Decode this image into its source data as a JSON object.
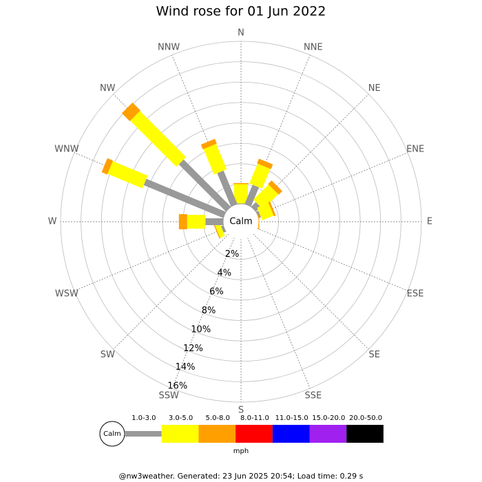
{
  "chart_data": {
    "type": "windrose",
    "title": "Wind rose for 01 Jun 2022",
    "directions": [
      "N",
      "NNE",
      "NE",
      "ENE",
      "E",
      "ESE",
      "SE",
      "SSE",
      "S",
      "SSW",
      "SW",
      "WSW",
      "W",
      "WNW",
      "NW",
      "NNW"
    ],
    "calm_label": "Calm",
    "rlim": [
      0,
      16
    ],
    "rticks": [
      {
        "value": 2,
        "label": "2%"
      },
      {
        "value": 4,
        "label": "4%"
      },
      {
        "value": 6,
        "label": "6%"
      },
      {
        "value": 8,
        "label": "8%"
      },
      {
        "value": 10,
        "label": "10%"
      },
      {
        "value": 12,
        "label": "12%"
      },
      {
        "value": 14,
        "label": "14%"
      },
      {
        "value": 16,
        "label": "16%"
      }
    ],
    "series": [
      {
        "name": "1.0-3.0",
        "color": "#999999",
        "values": [
          0.1,
          2.1,
          0.7,
          0.3,
          0,
          0,
          0,
          0,
          0,
          0,
          0,
          0.3,
          1.8,
          8.5,
          6.6,
          3.6
        ]
      },
      {
        "name": "3.0-5.0",
        "color": "#ffff00",
        "values": [
          1.9,
          2.1,
          2.1,
          1.2,
          0,
          0,
          0,
          0,
          0,
          0,
          0,
          0.5,
          1.8,
          3.7,
          6.4,
          2.7
        ]
      },
      {
        "name": "5.0-8.0",
        "color": "#ffa000",
        "values": [
          0.1,
          0.5,
          0.5,
          0.2,
          0.1,
          0,
          0,
          0,
          0,
          0,
          0,
          0.1,
          0.8,
          0.6,
          1.1,
          0.5
        ]
      },
      {
        "name": "8.0-11.0",
        "color": "#ff0000",
        "values": [
          0,
          0,
          0,
          0,
          0,
          0,
          0,
          0,
          0,
          0,
          0,
          0,
          0,
          0,
          0,
          0
        ]
      },
      {
        "name": "11.0-15.0",
        "color": "#0000ff",
        "values": [
          0,
          0,
          0,
          0,
          0,
          0,
          0,
          0,
          0,
          0,
          0,
          0,
          0,
          0,
          0,
          0
        ]
      },
      {
        "name": "15.0-20.0",
        "color": "#a020f0",
        "values": [
          0,
          0,
          0,
          0,
          0,
          0,
          0,
          0,
          0,
          0,
          0,
          0,
          0,
          0,
          0,
          0
        ]
      },
      {
        "name": "20.0-50.0",
        "color": "#000000",
        "values": [
          0,
          0,
          0,
          0,
          0,
          0,
          0,
          0,
          0,
          0,
          0,
          0,
          0,
          0,
          0,
          0
        ]
      }
    ],
    "units": "mph",
    "footer": "@nw3weather. Generated: 23 Jun 2025 20:54; Load time: 0.29 s"
  }
}
